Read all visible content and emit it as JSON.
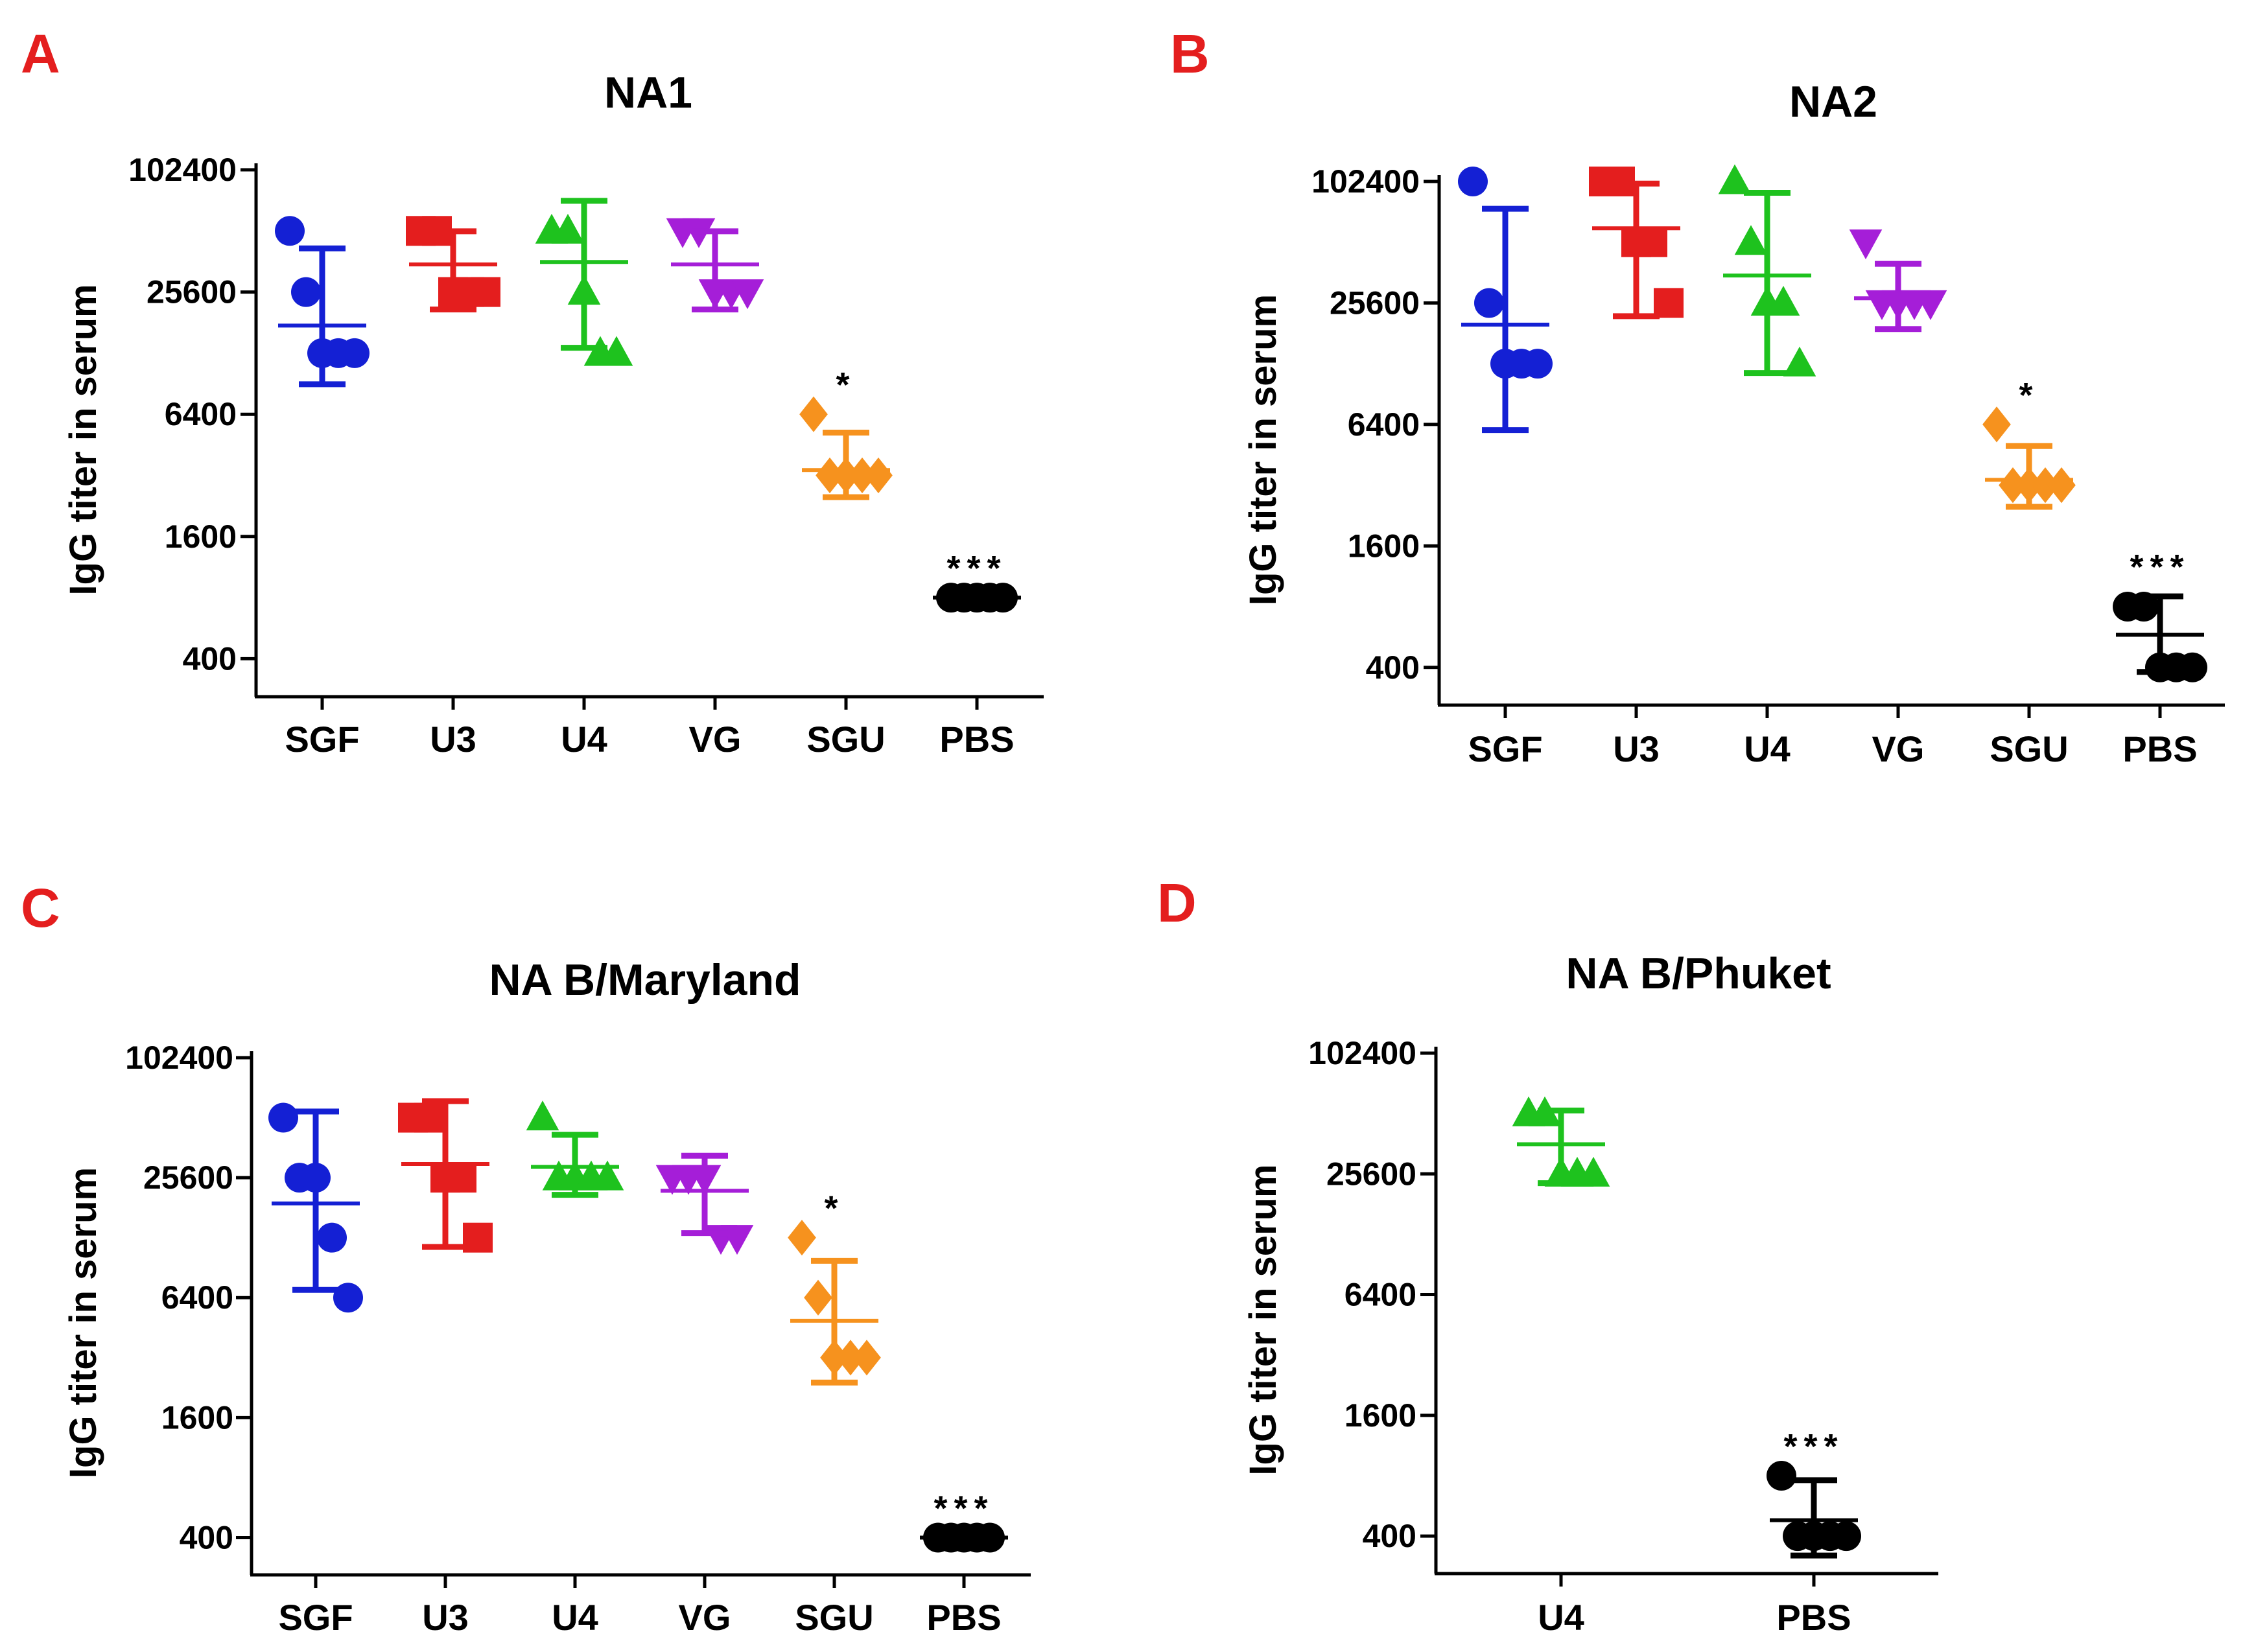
{
  "colors": {
    "SGF": "#1420d4",
    "U3": "#e41e1e",
    "U4": "#1ec21e",
    "VG": "#a51ed8",
    "SGU": "#f6921e",
    "PBS": "#000000",
    "panel_letter": "#e41e1e",
    "axis": "#000000"
  },
  "chart_data": [
    {
      "type": "scatter",
      "panel": "A",
      "title": "NA1",
      "ylabel": "IgG titer in serum",
      "xlabel": "",
      "yscale": "log2",
      "ylim": [
        260,
        102400
      ],
      "yticks": [
        400,
        1600,
        6400,
        25600,
        102400
      ],
      "ytick_labels": [
        "400",
        "1600",
        "6400",
        "25600",
        "102400"
      ],
      "categories": [
        "SGF",
        "U3",
        "U4",
        "VG",
        "SGU",
        "PBS"
      ],
      "series": [
        {
          "name": "SGF",
          "marker": "circle",
          "points": [
            51200,
            25600,
            12800,
            12800,
            12800
          ],
          "mean": 17500,
          "err": [
            9000,
            42000
          ],
          "sig": ""
        },
        {
          "name": "U3",
          "marker": "square",
          "points": [
            51200,
            51200,
            25600,
            25600,
            25600
          ],
          "mean": 35000,
          "err": [
            21000,
            51000
          ],
          "sig": ""
        },
        {
          "name": "U4",
          "marker": "triangle-up",
          "points": [
            51200,
            51200,
            25600,
            12800,
            12800
          ],
          "mean": 36000,
          "err": [
            13600,
            72000
          ],
          "sig": ""
        },
        {
          "name": "VG",
          "marker": "triangle-down",
          "points": [
            51200,
            51200,
            25600,
            25600,
            25600
          ],
          "mean": 35000,
          "err": [
            21000,
            51000
          ],
          "sig": ""
        },
        {
          "name": "SGU",
          "marker": "diamond",
          "points": [
            6400,
            3200,
            3200,
            3200,
            3200
          ],
          "mean": 3400,
          "err": [
            2500,
            5200
          ],
          "sig": "*"
        },
        {
          "name": "PBS",
          "marker": "circle",
          "points": [
            800,
            800,
            800,
            800,
            800
          ],
          "mean": 800,
          "err": [
            800,
            800
          ],
          "sig": "***"
        }
      ]
    },
    {
      "type": "scatter",
      "panel": "B",
      "title": "NA2",
      "ylabel": "IgG titer in serum",
      "xlabel": "",
      "yscale": "log2",
      "ylim": [
        260,
        102400
      ],
      "yticks": [
        400,
        1600,
        6400,
        25600,
        102400
      ],
      "ytick_labels": [
        "400",
        "1600",
        "6400",
        "25600",
        "102400"
      ],
      "categories": [
        "SGF",
        "U3",
        "U4",
        "VG",
        "SGU",
        "PBS"
      ],
      "series": [
        {
          "name": "SGF",
          "marker": "circle",
          "points": [
            102400,
            25600,
            12800,
            12800,
            12800
          ],
          "mean": 20000,
          "err": [
            6000,
            75000
          ],
          "sig": ""
        },
        {
          "name": "U3",
          "marker": "square",
          "points": [
            102400,
            102400,
            51200,
            51200,
            25600
          ],
          "mean": 60000,
          "err": [
            22000,
            100000
          ],
          "sig": ""
        },
        {
          "name": "U4",
          "marker": "triangle-up",
          "points": [
            102400,
            51200,
            25600,
            25600,
            12800
          ],
          "mean": 35000,
          "err": [
            11500,
            90000
          ],
          "sig": ""
        },
        {
          "name": "VG",
          "marker": "triangle-down",
          "points": [
            51200,
            25600,
            25600,
            25600,
            25600
          ],
          "mean": 27000,
          "err": [
            19000,
            40000
          ],
          "sig": ""
        },
        {
          "name": "SGU",
          "marker": "diamond",
          "points": [
            6400,
            3200,
            3200,
            3200,
            3200
          ],
          "mean": 3400,
          "err": [
            2500,
            5000
          ],
          "sig": "*"
        },
        {
          "name": "PBS",
          "marker": "circle",
          "points": [
            800,
            800,
            400,
            400,
            400
          ],
          "mean": 580,
          "err": [
            380,
            900
          ],
          "sig": "***"
        }
      ]
    },
    {
      "type": "scatter",
      "panel": "C",
      "title": "NA B/Maryland",
      "ylabel": "IgG titer in serum",
      "xlabel": "",
      "yscale": "log2",
      "ylim": [
        260,
        102400
      ],
      "yticks": [
        400,
        1600,
        6400,
        25600,
        102400
      ],
      "ytick_labels": [
        "400",
        "1600",
        "6400",
        "25600",
        "102400"
      ],
      "categories": [
        "SGF",
        "U3",
        "U4",
        "VG",
        "SGU",
        "PBS"
      ],
      "series": [
        {
          "name": "SGF",
          "marker": "circle",
          "points": [
            51200,
            25600,
            25600,
            12800,
            6400
          ],
          "mean": 19000,
          "err": [
            7000,
            55000
          ],
          "sig": ""
        },
        {
          "name": "U3",
          "marker": "square",
          "points": [
            51200,
            51200,
            25600,
            25600,
            12800
          ],
          "mean": 30000,
          "err": [
            11500,
            62000
          ],
          "sig": ""
        },
        {
          "name": "U4",
          "marker": "triangle-up",
          "points": [
            51200,
            25600,
            25600,
            25600,
            25600
          ],
          "mean": 29000,
          "err": [
            21000,
            42000
          ],
          "sig": ""
        },
        {
          "name": "VG",
          "marker": "triangle-down",
          "points": [
            25600,
            25600,
            25600,
            12800,
            12800
          ],
          "mean": 22000,
          "err": [
            13500,
            33000
          ],
          "sig": ""
        },
        {
          "name": "SGU",
          "marker": "diamond",
          "points": [
            12800,
            6400,
            3200,
            3200,
            3200
          ],
          "mean": 4900,
          "err": [
            2400,
            9800
          ],
          "sig": "*"
        },
        {
          "name": "PBS",
          "marker": "circle",
          "points": [
            400,
            400,
            400,
            400,
            400
          ],
          "mean": 400,
          "err": [
            400,
            400
          ],
          "sig": "***"
        }
      ]
    },
    {
      "type": "scatter",
      "panel": "D",
      "title": "NA B/Phuket",
      "ylabel": "IgG titer in serum",
      "xlabel": "",
      "yscale": "log2",
      "ylim": [
        260,
        102400
      ],
      "yticks": [
        400,
        1600,
        6400,
        25600,
        102400
      ],
      "ytick_labels": [
        "400",
        "1600",
        "6400",
        "25600",
        "102400"
      ],
      "categories": [
        "U4",
        "PBS"
      ],
      "series": [
        {
          "name": "U4",
          "marker": "triangle-up",
          "points": [
            51200,
            51200,
            25600,
            25600,
            25600
          ],
          "mean": 36000,
          "err": [
            23000,
            53000
          ],
          "sig": ""
        },
        {
          "name": "PBS",
          "marker": "circle",
          "points": [
            800,
            400,
            400,
            400,
            400
          ],
          "mean": 480,
          "err": [
            320,
            760
          ],
          "sig": "***"
        }
      ]
    }
  ]
}
